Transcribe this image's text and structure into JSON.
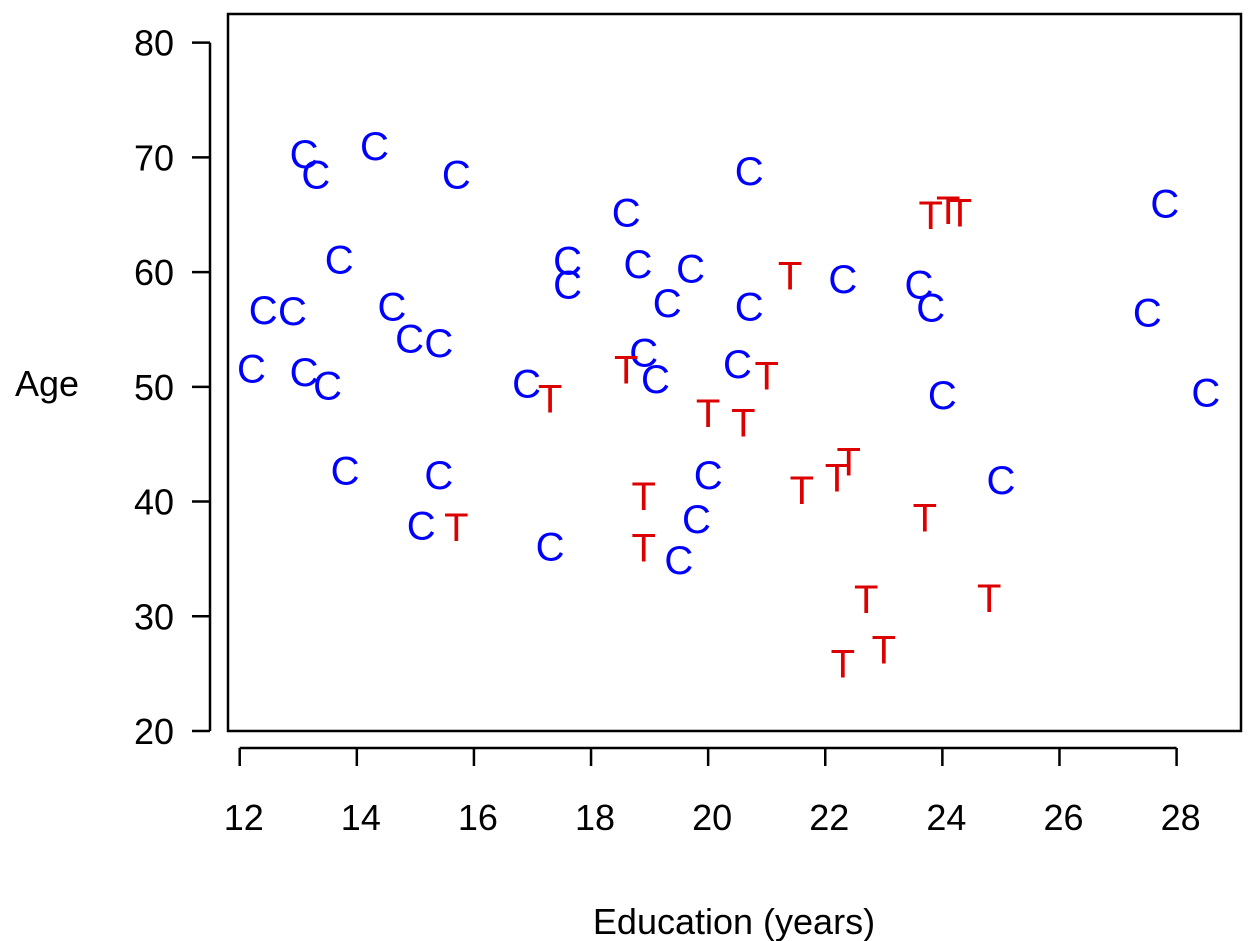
{
  "chart_data": {
    "type": "scatter",
    "title": "",
    "xlabel": "Education (years)",
    "ylabel": "Age",
    "xlim": [
      11.8,
      29.1
    ],
    "ylim": [
      20,
      82.5
    ],
    "xticks": [
      12,
      14,
      16,
      18,
      20,
      22,
      24,
      26,
      28
    ],
    "yticks": [
      20,
      30,
      40,
      50,
      60,
      70,
      80
    ],
    "grid": false,
    "legend": "none",
    "series": [
      {
        "marker": "C",
        "color": "#0000ff",
        "points": [
          {
            "x": 13.1,
            "y": 70.3
          },
          {
            "x": 14.3,
            "y": 71.0
          },
          {
            "x": 13.3,
            "y": 68.5
          },
          {
            "x": 15.7,
            "y": 68.5
          },
          {
            "x": 13.7,
            "y": 61.1
          },
          {
            "x": 12.4,
            "y": 56.7
          },
          {
            "x": 12.9,
            "y": 56.6
          },
          {
            "x": 14.6,
            "y": 57.0
          },
          {
            "x": 14.9,
            "y": 54.2
          },
          {
            "x": 15.4,
            "y": 53.8
          },
          {
            "x": 12.2,
            "y": 51.6
          },
          {
            "x": 13.1,
            "y": 51.3
          },
          {
            "x": 13.5,
            "y": 50.1
          },
          {
            "x": 13.8,
            "y": 42.7
          },
          {
            "x": 15.4,
            "y": 42.3
          },
          {
            "x": 15.1,
            "y": 37.9
          },
          {
            "x": 16.9,
            "y": 50.3
          },
          {
            "x": 17.3,
            "y": 36.1
          },
          {
            "x": 17.6,
            "y": 61.0
          },
          {
            "x": 17.6,
            "y": 58.9
          },
          {
            "x": 18.6,
            "y": 65.2
          },
          {
            "x": 18.8,
            "y": 60.7
          },
          {
            "x": 19.3,
            "y": 57.3
          },
          {
            "x": 19.7,
            "y": 60.3
          },
          {
            "x": 18.9,
            "y": 53.0
          },
          {
            "x": 19.1,
            "y": 50.7
          },
          {
            "x": 20.0,
            "y": 42.3
          },
          {
            "x": 19.8,
            "y": 38.5
          },
          {
            "x": 19.5,
            "y": 34.9
          },
          {
            "x": 20.7,
            "y": 68.8
          },
          {
            "x": 20.7,
            "y": 57.0
          },
          {
            "x": 20.5,
            "y": 52.0
          },
          {
            "x": 22.3,
            "y": 59.4
          },
          {
            "x": 23.6,
            "y": 58.9
          },
          {
            "x": 23.8,
            "y": 56.9
          },
          {
            "x": 24.0,
            "y": 49.3
          },
          {
            "x": 25.0,
            "y": 41.9
          },
          {
            "x": 27.8,
            "y": 66.0
          },
          {
            "x": 27.5,
            "y": 56.5
          },
          {
            "x": 28.5,
            "y": 49.5
          }
        ]
      },
      {
        "marker": "T",
        "color": "#dd0000",
        "points": [
          {
            "x": 17.3,
            "y": 49.0
          },
          {
            "x": 15.7,
            "y": 37.8
          },
          {
            "x": 18.6,
            "y": 51.5
          },
          {
            "x": 18.9,
            "y": 40.5
          },
          {
            "x": 18.9,
            "y": 36.0
          },
          {
            "x": 20.0,
            "y": 47.7
          },
          {
            "x": 20.6,
            "y": 46.9
          },
          {
            "x": 21.0,
            "y": 51.0
          },
          {
            "x": 21.4,
            "y": 59.7
          },
          {
            "x": 21.6,
            "y": 41.0
          },
          {
            "x": 22.2,
            "y": 42.1
          },
          {
            "x": 22.4,
            "y": 43.5
          },
          {
            "x": 22.7,
            "y": 31.5
          },
          {
            "x": 22.3,
            "y": 25.9
          },
          {
            "x": 23.0,
            "y": 27.1
          },
          {
            "x": 23.7,
            "y": 38.6
          },
          {
            "x": 23.8,
            "y": 65.0
          },
          {
            "x": 24.1,
            "y": 65.4
          },
          {
            "x": 24.3,
            "y": 65.2
          },
          {
            "x": 24.8,
            "y": 31.6
          }
        ]
      }
    ]
  }
}
